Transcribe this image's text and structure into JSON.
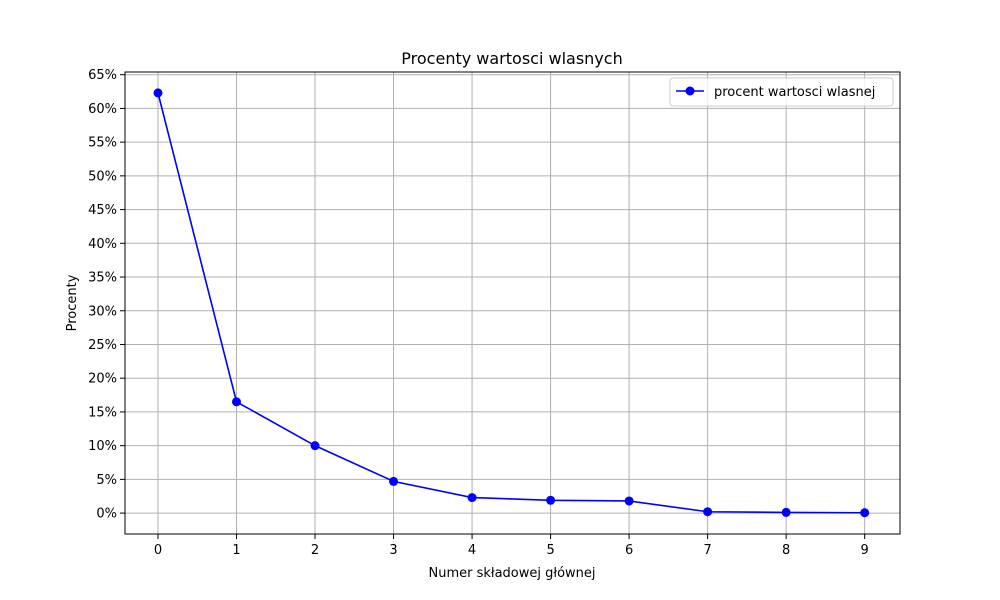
{
  "chart_data": {
    "type": "line",
    "title": "Procenty wartosci wlasnych",
    "xlabel": "Numer składowej głównej",
    "ylabel": "Procenty",
    "x": [
      0,
      1,
      2,
      3,
      4,
      5,
      6,
      7,
      8,
      9
    ],
    "xticks": [
      "0",
      "1",
      "2",
      "3",
      "4",
      "5",
      "6",
      "7",
      "8",
      "9"
    ],
    "yticks": [
      0,
      5,
      10,
      15,
      20,
      25,
      30,
      35,
      40,
      45,
      50,
      55,
      60,
      65
    ],
    "ytick_labels": [
      "0%",
      "5%",
      "10%",
      "15%",
      "20%",
      "25%",
      "30%",
      "35%",
      "40%",
      "45%",
      "50%",
      "55%",
      "60%",
      "65%"
    ],
    "xlim": [
      -0.42,
      9.45
    ],
    "ylim": [
      -3.1,
      65.4
    ],
    "grid": true,
    "legend_position": "top-right",
    "series": [
      {
        "name": "procent wartosci wlasnej",
        "color": "#0000ff",
        "marker": "circle",
        "values": [
          62.3,
          16.5,
          10.0,
          4.7,
          2.3,
          1.9,
          1.8,
          0.2,
          0.1,
          0.05
        ]
      }
    ]
  }
}
